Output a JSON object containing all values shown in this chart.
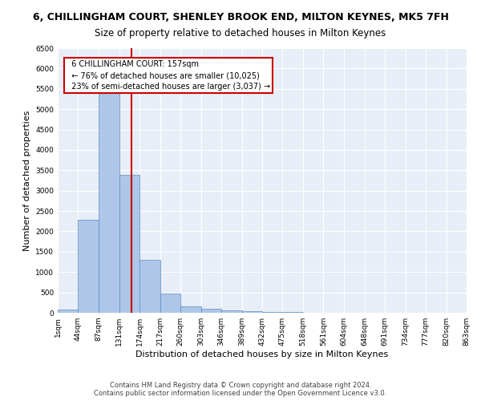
{
  "title": "6, CHILLINGHAM COURT, SHENLEY BROOK END, MILTON KEYNES, MK5 7FH",
  "subtitle": "Size of property relative to detached houses in Milton Keynes",
  "xlabel": "Distribution of detached houses by size in Milton Keynes",
  "ylabel": "Number of detached properties",
  "footer_line1": "Contains HM Land Registry data © Crown copyright and database right 2024.",
  "footer_line2": "Contains public sector information licensed under the Open Government Licence v3.0.",
  "bar_edges": [
    1,
    44,
    87,
    131,
    174,
    217,
    260,
    303,
    346,
    389,
    432,
    475,
    518,
    561,
    604,
    648,
    691,
    734,
    777,
    820,
    863
  ],
  "bar_values": [
    75,
    2280,
    5430,
    3380,
    1300,
    480,
    160,
    90,
    50,
    30,
    20,
    10,
    5,
    5,
    5,
    5,
    5,
    5,
    5,
    5
  ],
  "bar_color": "#aec6e8",
  "bar_edge_color": "#5a8fc0",
  "property_size": 157,
  "property_label": "6 CHILLINGHAM COURT: 157sqm",
  "pct_smaller": 76,
  "num_smaller": 10025,
  "pct_semi_larger": 23,
  "num_semi_larger": 3037,
  "annotation_box_color": "#ffffff",
  "annotation_box_edge": "#cc0000",
  "vline_color": "#cc0000",
  "ylim": [
    0,
    6500
  ],
  "yticks": [
    0,
    500,
    1000,
    1500,
    2000,
    2500,
    3000,
    3500,
    4000,
    4500,
    5000,
    5500,
    6000,
    6500
  ],
  "bg_color": "#e8eef7",
  "grid_color": "#ffffff",
  "fig_bg_color": "#ffffff",
  "title_fontsize": 9,
  "subtitle_fontsize": 8.5,
  "axis_label_fontsize": 8,
  "tick_fontsize": 6.5,
  "annotation_fontsize": 7,
  "footer_fontsize": 6
}
